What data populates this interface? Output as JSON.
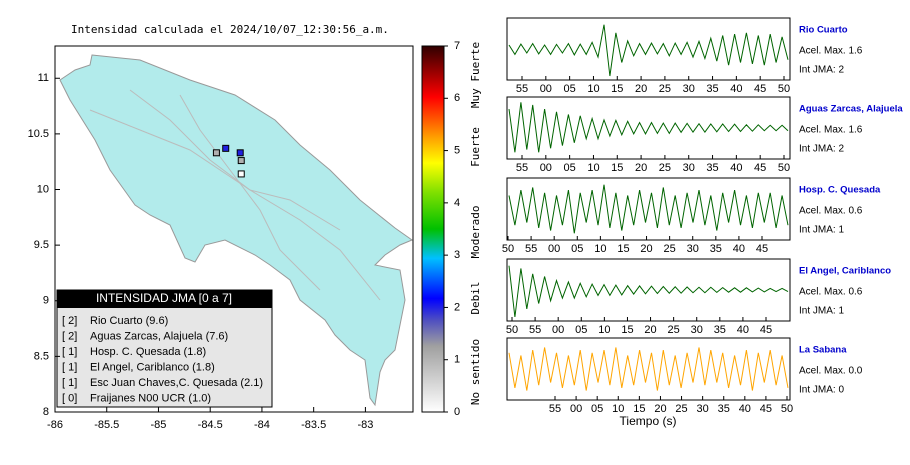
{
  "title": "Intensidad calculada el 2024/10/07_12:30:56_a.m.",
  "map": {
    "xlim": [
      -86,
      -82.54
    ],
    "ylim": [
      8,
      11.29
    ],
    "xticks": [
      -86,
      -85.5,
      -85,
      -84.5,
      -84,
      -83.5,
      -83
    ],
    "yticks": [
      8,
      8.5,
      9,
      9.5,
      10,
      10.5,
      11
    ],
    "stations": [
      {
        "lon": -84.44,
        "lat": 10.33,
        "intensity": 1
      },
      {
        "lon": -84.35,
        "lat": 10.37,
        "intensity": 2
      },
      {
        "lon": -84.21,
        "lat": 10.33,
        "intensity": 2
      },
      {
        "lon": -84.2,
        "lat": 10.26,
        "intensity": 1
      },
      {
        "lon": -84.2,
        "lat": 10.14,
        "intensity": 0
      }
    ]
  },
  "colorbar": {
    "lim": [
      0,
      7
    ],
    "ticks": [
      0,
      1,
      2,
      3,
      4,
      5,
      6,
      7
    ],
    "classes": [
      "Muy Fuerte",
      "Fuerte",
      "Moderado",
      "Debil",
      "No sentido"
    ]
  },
  "legend": {
    "title": "INTENSIDAD JMA [0 a 7]",
    "items": [
      {
        "code": "[ 2]",
        "label": "Rio Cuarto (9.6)"
      },
      {
        "code": "[ 2]",
        "label": "Aguas Zarcas, Alajuela (7.6)"
      },
      {
        "code": "[ 1]",
        "label": "Hosp. C. Quesada (1.8)"
      },
      {
        "code": "[ 1]",
        "label": "El Angel, Cariblanco (1.8)"
      },
      {
        "code": "[ 1]",
        "label": "Esc Juan Chaves,C. Quesada (2.1)"
      },
      {
        "code": "[ 0]",
        "label": "Fraijanes N00 UCR (1.0)"
      }
    ]
  },
  "x_axis_label": "Tiempo (s)",
  "traces": [
    {
      "name": "Rio Cuarto",
      "accel": "Acel. Max. 1.6",
      "jma": "Int JMA: 2",
      "color": "#006400",
      "ticks": [
        "55",
        "00",
        "05",
        "10",
        "15",
        "20",
        "25",
        "30",
        "35",
        "40",
        "45",
        "50"
      ],
      "values": [
        0.15,
        -0.2,
        0.18,
        -0.15,
        0.2,
        -0.18,
        0.15,
        -0.2,
        0.17,
        -0.15,
        0.2,
        -0.22,
        0.18,
        -0.2,
        0.25,
        -0.3,
        0.9,
        -1.0,
        0.6,
        -0.5,
        0.3,
        -0.25,
        0.2,
        -0.2,
        0.22,
        -0.18,
        0.2,
        -0.25,
        0.22,
        -0.2,
        0.25,
        -0.3,
        0.28,
        -0.35,
        0.4,
        -0.45,
        0.5,
        -0.6,
        0.55,
        -0.5,
        0.6,
        -0.55,
        0.5,
        -0.6,
        0.55,
        -0.5,
        0.45,
        -0.4
      ]
    },
    {
      "name": "Aguas Zarcas, Alajuela",
      "accel": "Acel. Max. 1.6",
      "jma": "Int JMA: 2",
      "color": "#006400",
      "ticks": [
        "55",
        "00",
        "05",
        "10",
        "15",
        "20",
        "25",
        "30",
        "35",
        "40",
        "45",
        "50"
      ],
      "values": [
        0.7,
        -0.9,
        0.95,
        -0.8,
        0.85,
        -0.9,
        0.7,
        -0.75,
        0.6,
        -0.65,
        0.5,
        -0.55,
        0.45,
        -0.4,
        0.35,
        -0.4,
        0.3,
        -0.3,
        0.28,
        -0.25,
        0.25,
        -0.22,
        0.2,
        -0.22,
        0.2,
        -0.2,
        0.18,
        -0.2,
        0.18,
        -0.16,
        0.17,
        -0.15,
        0.16,
        -0.15,
        0.15,
        -0.14,
        0.15,
        -0.13,
        0.14,
        -0.13,
        0.12,
        -0.12,
        0.12,
        -0.1,
        0.1,
        -0.1,
        0.1,
        -0.1
      ]
    },
    {
      "name": "Hosp. C. Quesada",
      "accel": "Acel. Max. 0.6",
      "jma": "Int JMA: 1",
      "color": "#006400",
      "ticks": [
        "50",
        "55",
        "00",
        "05",
        "10",
        "15",
        "20",
        "25",
        "30",
        "35",
        "40",
        "45"
      ],
      "values": [
        0.5,
        -0.6,
        0.7,
        -0.5,
        0.8,
        -0.7,
        0.6,
        -0.8,
        0.5,
        -0.6,
        0.7,
        -0.9,
        0.6,
        -0.5,
        0.7,
        -0.6,
        0.9,
        -0.7,
        0.6,
        -0.8,
        0.5,
        -0.6,
        0.7,
        -0.5,
        0.6,
        -0.7,
        0.8,
        -0.6,
        0.5,
        -0.7,
        0.6,
        -0.5,
        0.7,
        -0.6,
        0.5,
        -0.8,
        0.6,
        -0.5,
        0.7,
        -0.6,
        0.5,
        -0.7,
        0.6,
        -0.5,
        0.6,
        -0.7,
        0.5,
        -0.6
      ]
    },
    {
      "name": "El Angel, Cariblanco",
      "accel": "Acel. Max. 0.6",
      "jma": "Int JMA: 1",
      "color": "#006400",
      "ticks": [
        "50",
        "55",
        "00",
        "05",
        "10",
        "15",
        "20",
        "25",
        "30",
        "35",
        "40",
        "45"
      ],
      "values": [
        0.9,
        -1.0,
        0.8,
        -0.7,
        0.6,
        -0.5,
        0.5,
        -0.4,
        0.35,
        -0.3,
        0.3,
        -0.3,
        0.25,
        -0.25,
        0.22,
        -0.2,
        0.2,
        -0.2,
        0.18,
        -0.18,
        0.16,
        -0.15,
        0.15,
        -0.14,
        0.14,
        -0.13,
        0.13,
        -0.12,
        0.12,
        -0.12,
        0.11,
        -0.1,
        0.1,
        -0.1,
        0.1,
        -0.09,
        0.09,
        -0.08,
        0.08,
        -0.08,
        0.08,
        -0.07,
        0.07,
        -0.07,
        0.06,
        -0.06,
        0.06,
        -0.06
      ]
    },
    {
      "name": "La Sabana",
      "accel": "Acel. Max. 0.0",
      "jma": "Int JMA: 0",
      "color": "#ffa500",
      "ticks": [
        "55",
        "00",
        "05",
        "10",
        "15",
        "20",
        "25",
        "30",
        "35",
        "40",
        "45",
        "50"
      ],
      "values": [
        0.6,
        -0.7,
        0.5,
        -0.8,
        0.7,
        -0.6,
        0.8,
        -0.5,
        0.6,
        -0.7,
        0.5,
        -0.6,
        0.7,
        -0.8,
        0.6,
        -0.5,
        0.7,
        -0.6,
        0.8,
        -0.7,
        0.5,
        -0.6,
        0.7,
        -0.5,
        0.6,
        -0.8,
        0.7,
        -0.6,
        0.5,
        -0.7,
        0.6,
        -0.5,
        0.8,
        -0.6,
        0.7,
        -0.5,
        0.6,
        -0.7,
        0.5,
        -0.6,
        0.7,
        -0.8,
        0.6,
        -0.5,
        0.7,
        -0.6,
        0.5,
        -0.7
      ]
    }
  ]
}
